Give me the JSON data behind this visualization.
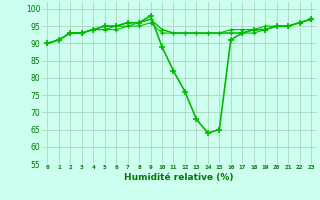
{
  "x": [
    0,
    1,
    2,
    3,
    4,
    5,
    6,
    7,
    8,
    9,
    10,
    11,
    12,
    13,
    14,
    15,
    16,
    17,
    18,
    19,
    20,
    21,
    22,
    23
  ],
  "series": [
    [
      90,
      91,
      93,
      93,
      94,
      95,
      95,
      96,
      96,
      97,
      94,
      93,
      93,
      93,
      93,
      93,
      94,
      94,
      94,
      95,
      95,
      95,
      96,
      97
    ],
    [
      90,
      91,
      93,
      93,
      94,
      94,
      95,
      95,
      96,
      97,
      94,
      93,
      93,
      93,
      93,
      93,
      93,
      93,
      94,
      94,
      95,
      95,
      96,
      97
    ],
    [
      90,
      91,
      93,
      93,
      94,
      95,
      95,
      96,
      96,
      98,
      89,
      82,
      76,
      68,
      64,
      65,
      91,
      93,
      94,
      94,
      95,
      95,
      96,
      97
    ],
    [
      90,
      91,
      93,
      93,
      94,
      94,
      94,
      95,
      95,
      96,
      93,
      93,
      93,
      93,
      93,
      93,
      93,
      93,
      93,
      94,
      95,
      95,
      96,
      97
    ]
  ],
  "line_color": "#00bb00",
  "marker": "+",
  "marker_sizes": [
    3,
    3,
    5,
    3
  ],
  "linewidths": [
    0.8,
    0.8,
    1.2,
    0.8
  ],
  "markeredgewidths": [
    0.8,
    0.8,
    1.2,
    0.8
  ],
  "bg_color": "#ccffee",
  "grid_color": "#aaccbb",
  "xlabel": "Humidité relative (%)",
  "xlabel_color": "#007700",
  "tick_color": "#007700",
  "ylim": [
    55,
    102
  ],
  "xlim": [
    -0.5,
    23.5
  ],
  "yticks": [
    55,
    60,
    65,
    70,
    75,
    80,
    85,
    90,
    95,
    100
  ],
  "xticks": [
    0,
    1,
    2,
    3,
    4,
    5,
    6,
    7,
    8,
    9,
    10,
    11,
    12,
    13,
    14,
    15,
    16,
    17,
    18,
    19,
    20,
    21,
    22,
    23
  ]
}
